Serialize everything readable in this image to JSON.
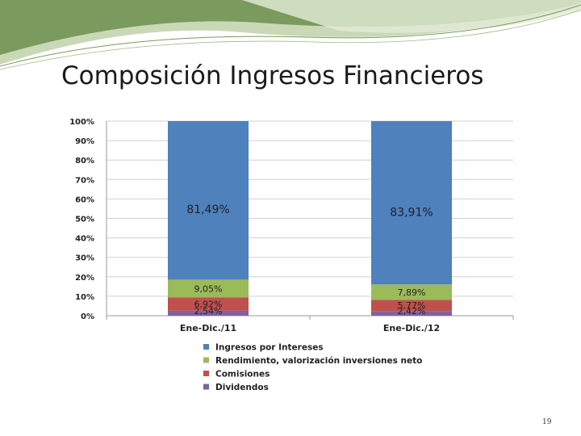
{
  "slide": {
    "title": "Composición Ingresos Financieros",
    "page_number": "19"
  },
  "colors": {
    "header_green_dark": "#7a9a5e",
    "header_green_light": "#c9d8b6",
    "grid": "#d0d0d0"
  },
  "chart_data": {
    "type": "bar",
    "stacked": true,
    "percent_scale": true,
    "categories": [
      "Ene-Dic./11",
      "Ene-Dic./12"
    ],
    "series": [
      {
        "name": "Dividendos",
        "values": [
          2.54,
          2.42
        ],
        "labels": [
          "2,54%",
          "2,42%"
        ],
        "color": "#7f62a1"
      },
      {
        "name": "Comisiones",
        "values": [
          6.92,
          5.77
        ],
        "labels": [
          "6,92%",
          "5,77%"
        ],
        "color": "#c0504d"
      },
      {
        "name": "Rendimiento, valorización inversiones neto",
        "values": [
          9.05,
          7.89
        ],
        "labels": [
          "9,05%",
          "7,89%"
        ],
        "color": "#9bbb59"
      },
      {
        "name": "Ingresos por Intereses",
        "values": [
          81.49,
          83.91
        ],
        "labels": [
          "81,49%",
          "83,91%"
        ],
        "color": "#4f81bd"
      }
    ],
    "legend_order": [
      "Ingresos por Intereses",
      "Rendimiento, valorización inversiones neto",
      "Comisiones",
      "Dividendos"
    ],
    "y_ticks": [
      "0%",
      "10%",
      "20%",
      "30%",
      "40%",
      "50%",
      "60%",
      "70%",
      "80%",
      "90%",
      "100%"
    ],
    "ylim": [
      0,
      100
    ],
    "grid": true,
    "legend_position": "bottom"
  }
}
